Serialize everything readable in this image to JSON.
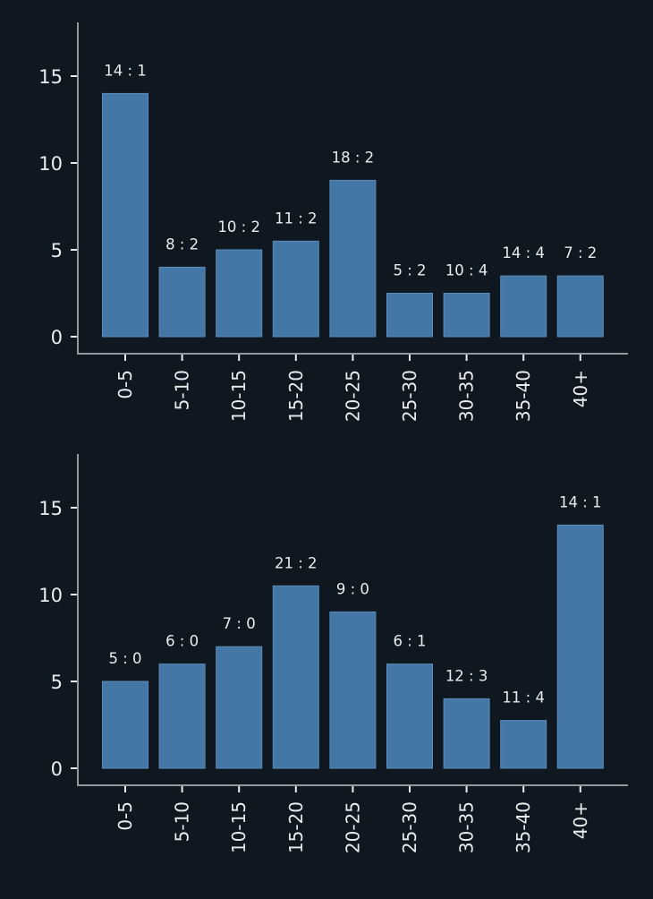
{
  "theme": {
    "background": "#0f1821",
    "bar_fill": "#4477a5",
    "bar_edge": "#5b8cba",
    "axis_color": "#8e9c9e",
    "text_color": "#e8ecef"
  },
  "chart_data": [
    {
      "type": "bar",
      "title": "",
      "xlabel": "",
      "ylabel": "",
      "categories": [
        "0-5",
        "5-10",
        "10-15",
        "15-20",
        "20-25",
        "25-30",
        "30-35",
        "35-40",
        "40+"
      ],
      "values": [
        14,
        4,
        5,
        5.5,
        9,
        2.5,
        2.5,
        3.5,
        3.5
      ],
      "data_labels": [
        "14 : 1",
        "8 : 2",
        "10 : 2",
        "11 : 2",
        "18 : 2",
        "5 : 2",
        "10 : 4",
        "14 : 4",
        "7 : 2"
      ],
      "yticks": [
        0,
        5,
        10,
        15
      ],
      "ytick_labels": [
        "0",
        "5",
        "10",
        "15"
      ],
      "ylim": [
        -1,
        18
      ],
      "grid": false,
      "legend": null
    },
    {
      "type": "bar",
      "title": "",
      "xlabel": "",
      "ylabel": "",
      "categories": [
        "0-5",
        "5-10",
        "10-15",
        "15-20",
        "20-25",
        "25-30",
        "30-35",
        "35-40",
        "40+"
      ],
      "values": [
        5,
        6,
        7,
        10.5,
        9,
        6,
        4,
        2.75,
        14
      ],
      "data_labels": [
        "5 : 0",
        "6 : 0",
        "7 : 0",
        "21 : 2",
        "9 : 0",
        "6 : 1",
        "12 : 3",
        "11 : 4",
        "14 : 1"
      ],
      "yticks": [
        0,
        5,
        10,
        15
      ],
      "ytick_labels": [
        "0",
        "5",
        "10",
        "15"
      ],
      "ylim": [
        -1,
        18
      ],
      "grid": false,
      "legend": null
    }
  ]
}
